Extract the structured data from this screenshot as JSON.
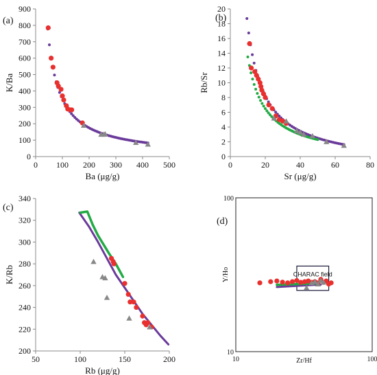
{
  "colors": {
    "model_purple": "#6a3a9a",
    "model_green": "#22aa44",
    "data_red": "#e8312f",
    "data_grey": "#888888",
    "axis": "#888888"
  },
  "chart_data": [
    {
      "panel": "(a)",
      "type": "scatter",
      "xlabel": "Ba (μg/g)",
      "ylabel": "K/Ba",
      "xlim": [
        0,
        500
      ],
      "ylim": [
        0,
        900
      ],
      "xticks": [
        0,
        100,
        200,
        300,
        400,
        500
      ],
      "yticks": [
        0,
        100,
        200,
        300,
        400,
        500,
        600,
        700,
        800,
        900
      ],
      "grid": false,
      "legend": "none",
      "series": [
        {
          "kind": "model-curve",
          "color": "purple",
          "constant": 35000,
          "x_range": [
            45,
            420
          ],
          "n": 60
        },
        {
          "kind": "data",
          "marker": "circle",
          "color": "red",
          "x": [
            47,
            58,
            65,
            80,
            85,
            95,
            100,
            105,
            115,
            120,
            130,
            135,
            175
          ],
          "y": [
            785,
            600,
            545,
            450,
            430,
            410,
            370,
            345,
            310,
            290,
            285,
            285,
            205
          ]
        },
        {
          "kind": "data",
          "marker": "triangle",
          "color": "grey",
          "x": [
            180,
            245,
            255,
            260,
            375,
            420
          ],
          "y": [
            190,
            135,
            135,
            138,
            85,
            75
          ]
        }
      ]
    },
    {
      "panel": "(b)",
      "type": "scatter",
      "xlabel": "Sr (μg/g)",
      "ylabel": "Rb/Sr",
      "xlim": [
        0,
        80
      ],
      "ylim": [
        0,
        20
      ],
      "xticks": [
        0,
        20,
        40,
        60,
        80
      ],
      "yticks": [
        0,
        2,
        4,
        6,
        8,
        10,
        12,
        14,
        16,
        18,
        20
      ],
      "grid": false,
      "legend": "none",
      "series": [
        {
          "kind": "model-curve",
          "color": "purple",
          "constant": 190,
          "offset": -1.3,
          "x_range": [
            9.5,
            65
          ],
          "n": 55
        },
        {
          "kind": "model-curve",
          "color": "green",
          "constant": 140,
          "offset": -0.5,
          "x_range": [
            10,
            50
          ],
          "n": 45
        },
        {
          "kind": "data",
          "marker": "circle",
          "color": "red",
          "x": [
            11,
            12,
            14,
            15,
            16,
            17,
            17.5,
            18,
            19,
            20,
            22,
            24,
            26,
            28,
            30,
            32
          ],
          "y": [
            15.3,
            12,
            11.5,
            11,
            10.5,
            10,
            9.5,
            9,
            8.5,
            8,
            7,
            6.5,
            5.5,
            5,
            4.8,
            4.5
          ]
        },
        {
          "kind": "data",
          "marker": "triangle",
          "color": "grey",
          "x": [
            25,
            32,
            38,
            40,
            42,
            47,
            55,
            65
          ],
          "y": [
            5.2,
            4.8,
            3.5,
            3.3,
            3,
            2.8,
            2,
            1.5
          ]
        }
      ]
    },
    {
      "panel": "(c)",
      "type": "scatter",
      "xlabel": "Rb (μg/g)",
      "ylabel": "K/Rb",
      "xlim": [
        50,
        200
      ],
      "ylim": [
        200,
        340
      ],
      "xticks": [
        50,
        100,
        150,
        200
      ],
      "yticks": [
        200,
        220,
        240,
        260,
        280,
        300,
        320,
        340
      ],
      "grid": false,
      "legend": "none",
      "series": [
        {
          "kind": "model-line",
          "color": "purple",
          "x": [
            99,
            110,
            120,
            130,
            140,
            150,
            160,
            170,
            180,
            190,
            199
          ],
          "y": [
            327,
            314,
            300,
            285,
            270,
            258,
            246,
            234,
            224,
            214,
            206
          ]
        },
        {
          "kind": "model-line",
          "color": "green",
          "x": [
            100,
            108,
            114,
            120,
            126,
            132,
            140,
            148
          ],
          "y": [
            327,
            328,
            316,
            306,
            298,
            290,
            280,
            268
          ]
        },
        {
          "kind": "data",
          "marker": "circle",
          "color": "red",
          "x": [
            135,
            137,
            138,
            150,
            154,
            156,
            160,
            163,
            170,
            172,
            174,
            176,
            180
          ],
          "y": [
            285,
            282,
            280,
            262,
            252,
            245,
            245,
            240,
            232,
            226,
            224,
            226,
            222
          ]
        },
        {
          "kind": "data",
          "marker": "triangle",
          "color": "grey",
          "x": [
            115,
            125,
            128,
            130,
            155,
            178
          ],
          "y": [
            282,
            268,
            267,
            249,
            230,
            222
          ]
        }
      ]
    },
    {
      "panel": "(d)",
      "type": "scatter",
      "xlabel": "Zr/Hf",
      "ylabel": "Y/Ho",
      "xscale": "log",
      "yscale": "log",
      "xlim": [
        10,
        100
      ],
      "ylim": [
        10,
        100
      ],
      "xticks": [
        10,
        100
      ],
      "yticks": [
        10,
        100
      ],
      "grid": false,
      "legend": "none",
      "annotations": [
        {
          "text": "CHARAC field",
          "x0": 28,
          "x1": 48,
          "y0": 25,
          "y1": 36
        }
      ],
      "series": [
        {
          "kind": "model-line",
          "color": "purple",
          "x": [
            20,
            42
          ],
          "y": [
            26.3,
            27.3
          ]
        },
        {
          "kind": "model-line",
          "color": "green",
          "x": [
            20,
            40
          ],
          "y": [
            27.2,
            27.8
          ]
        },
        {
          "kind": "data",
          "marker": "circle",
          "color": "red",
          "x": [
            15,
            18,
            20,
            22,
            24,
            26,
            28,
            30,
            32,
            34,
            36,
            38,
            40,
            42,
            44,
            46,
            48,
            50
          ],
          "y": [
            28,
            28.5,
            28.8,
            28.3,
            28,
            28.5,
            29,
            28.2,
            28.5,
            28.8,
            28.2,
            28.5,
            28,
            29.5,
            28.2,
            28.8,
            27.5,
            28
          ]
        },
        {
          "kind": "data",
          "marker": "triangle",
          "color": "grey",
          "x": [
            33,
            36,
            38,
            40,
            42,
            44
          ],
          "y": [
            26,
            28,
            28.5,
            27.5,
            29,
            28.2
          ]
        }
      ]
    }
  ]
}
